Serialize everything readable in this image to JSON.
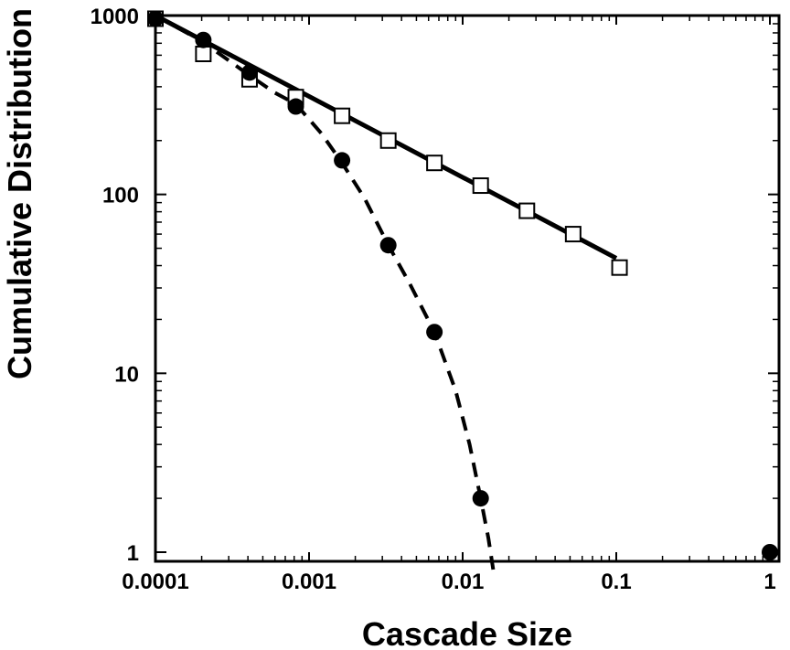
{
  "chart_data": {
    "type": "scatter",
    "title": "",
    "xlabel": "Cascade Size",
    "ylabel": "Cumulative Distribution",
    "x_scale": "log",
    "y_scale": "log",
    "xlim": [
      0.0001,
      1.2
    ],
    "ylim": [
      0.8,
      1000
    ],
    "grid": false,
    "x_ticks": [
      {
        "value": 0.0001,
        "label": "0.0001"
      },
      {
        "value": 0.001,
        "label": "0.001"
      },
      {
        "value": 0.01,
        "label": "0.01"
      },
      {
        "value": 0.1,
        "label": "0.1"
      },
      {
        "value": 1,
        "label": "1"
      }
    ],
    "y_ticks": [
      {
        "value": 1,
        "label": "1"
      },
      {
        "value": 10,
        "label": "10"
      },
      {
        "value": 100,
        "label": "100"
      },
      {
        "value": 1000,
        "label": "1000"
      }
    ],
    "series": [
      {
        "marker": "open-square",
        "color": "#000000",
        "points": [
          [
            0.0001,
            960
          ],
          [
            0.000205,
            610
          ],
          [
            0.00041,
            440
          ],
          [
            0.00082,
            350
          ],
          [
            0.00164,
            275
          ],
          [
            0.00328,
            200
          ],
          [
            0.00655,
            150
          ],
          [
            0.0131,
            112
          ],
          [
            0.0262,
            81
          ],
          [
            0.0524,
            60
          ],
          [
            0.105,
            39
          ]
        ]
      },
      {
        "marker": "filled-circle",
        "color": "#000000",
        "points": [
          [
            0.0001,
            960
          ],
          [
            0.000205,
            730
          ],
          [
            0.00041,
            480
          ],
          [
            0.00082,
            310
          ],
          [
            0.00164,
            155
          ],
          [
            0.00328,
            52
          ],
          [
            0.00655,
            17
          ],
          [
            0.0131,
            2
          ],
          [
            1,
            1
          ]
        ]
      }
    ],
    "fit_lines": [
      {
        "style": "solid",
        "color": "#000000",
        "points": [
          [
            0.0001,
            1000
          ],
          [
            0.1,
            44
          ]
        ]
      },
      {
        "style": "dashed",
        "color": "#000000",
        "points": [
          [
            0.0001,
            1000
          ],
          [
            0.0002,
            720
          ],
          [
            0.0004,
            470
          ],
          [
            0.0006,
            370
          ],
          [
            0.00082,
            320
          ],
          [
            0.0012,
            220
          ],
          [
            0.00164,
            150
          ],
          [
            0.0023,
            95
          ],
          [
            0.00328,
            52
          ],
          [
            0.0045,
            32
          ],
          [
            0.00655,
            17
          ],
          [
            0.009,
            8
          ],
          [
            0.0111,
            4
          ],
          [
            0.0131,
            2
          ],
          [
            0.0147,
            1.2
          ],
          [
            0.0158,
            0.8
          ]
        ]
      }
    ]
  }
}
